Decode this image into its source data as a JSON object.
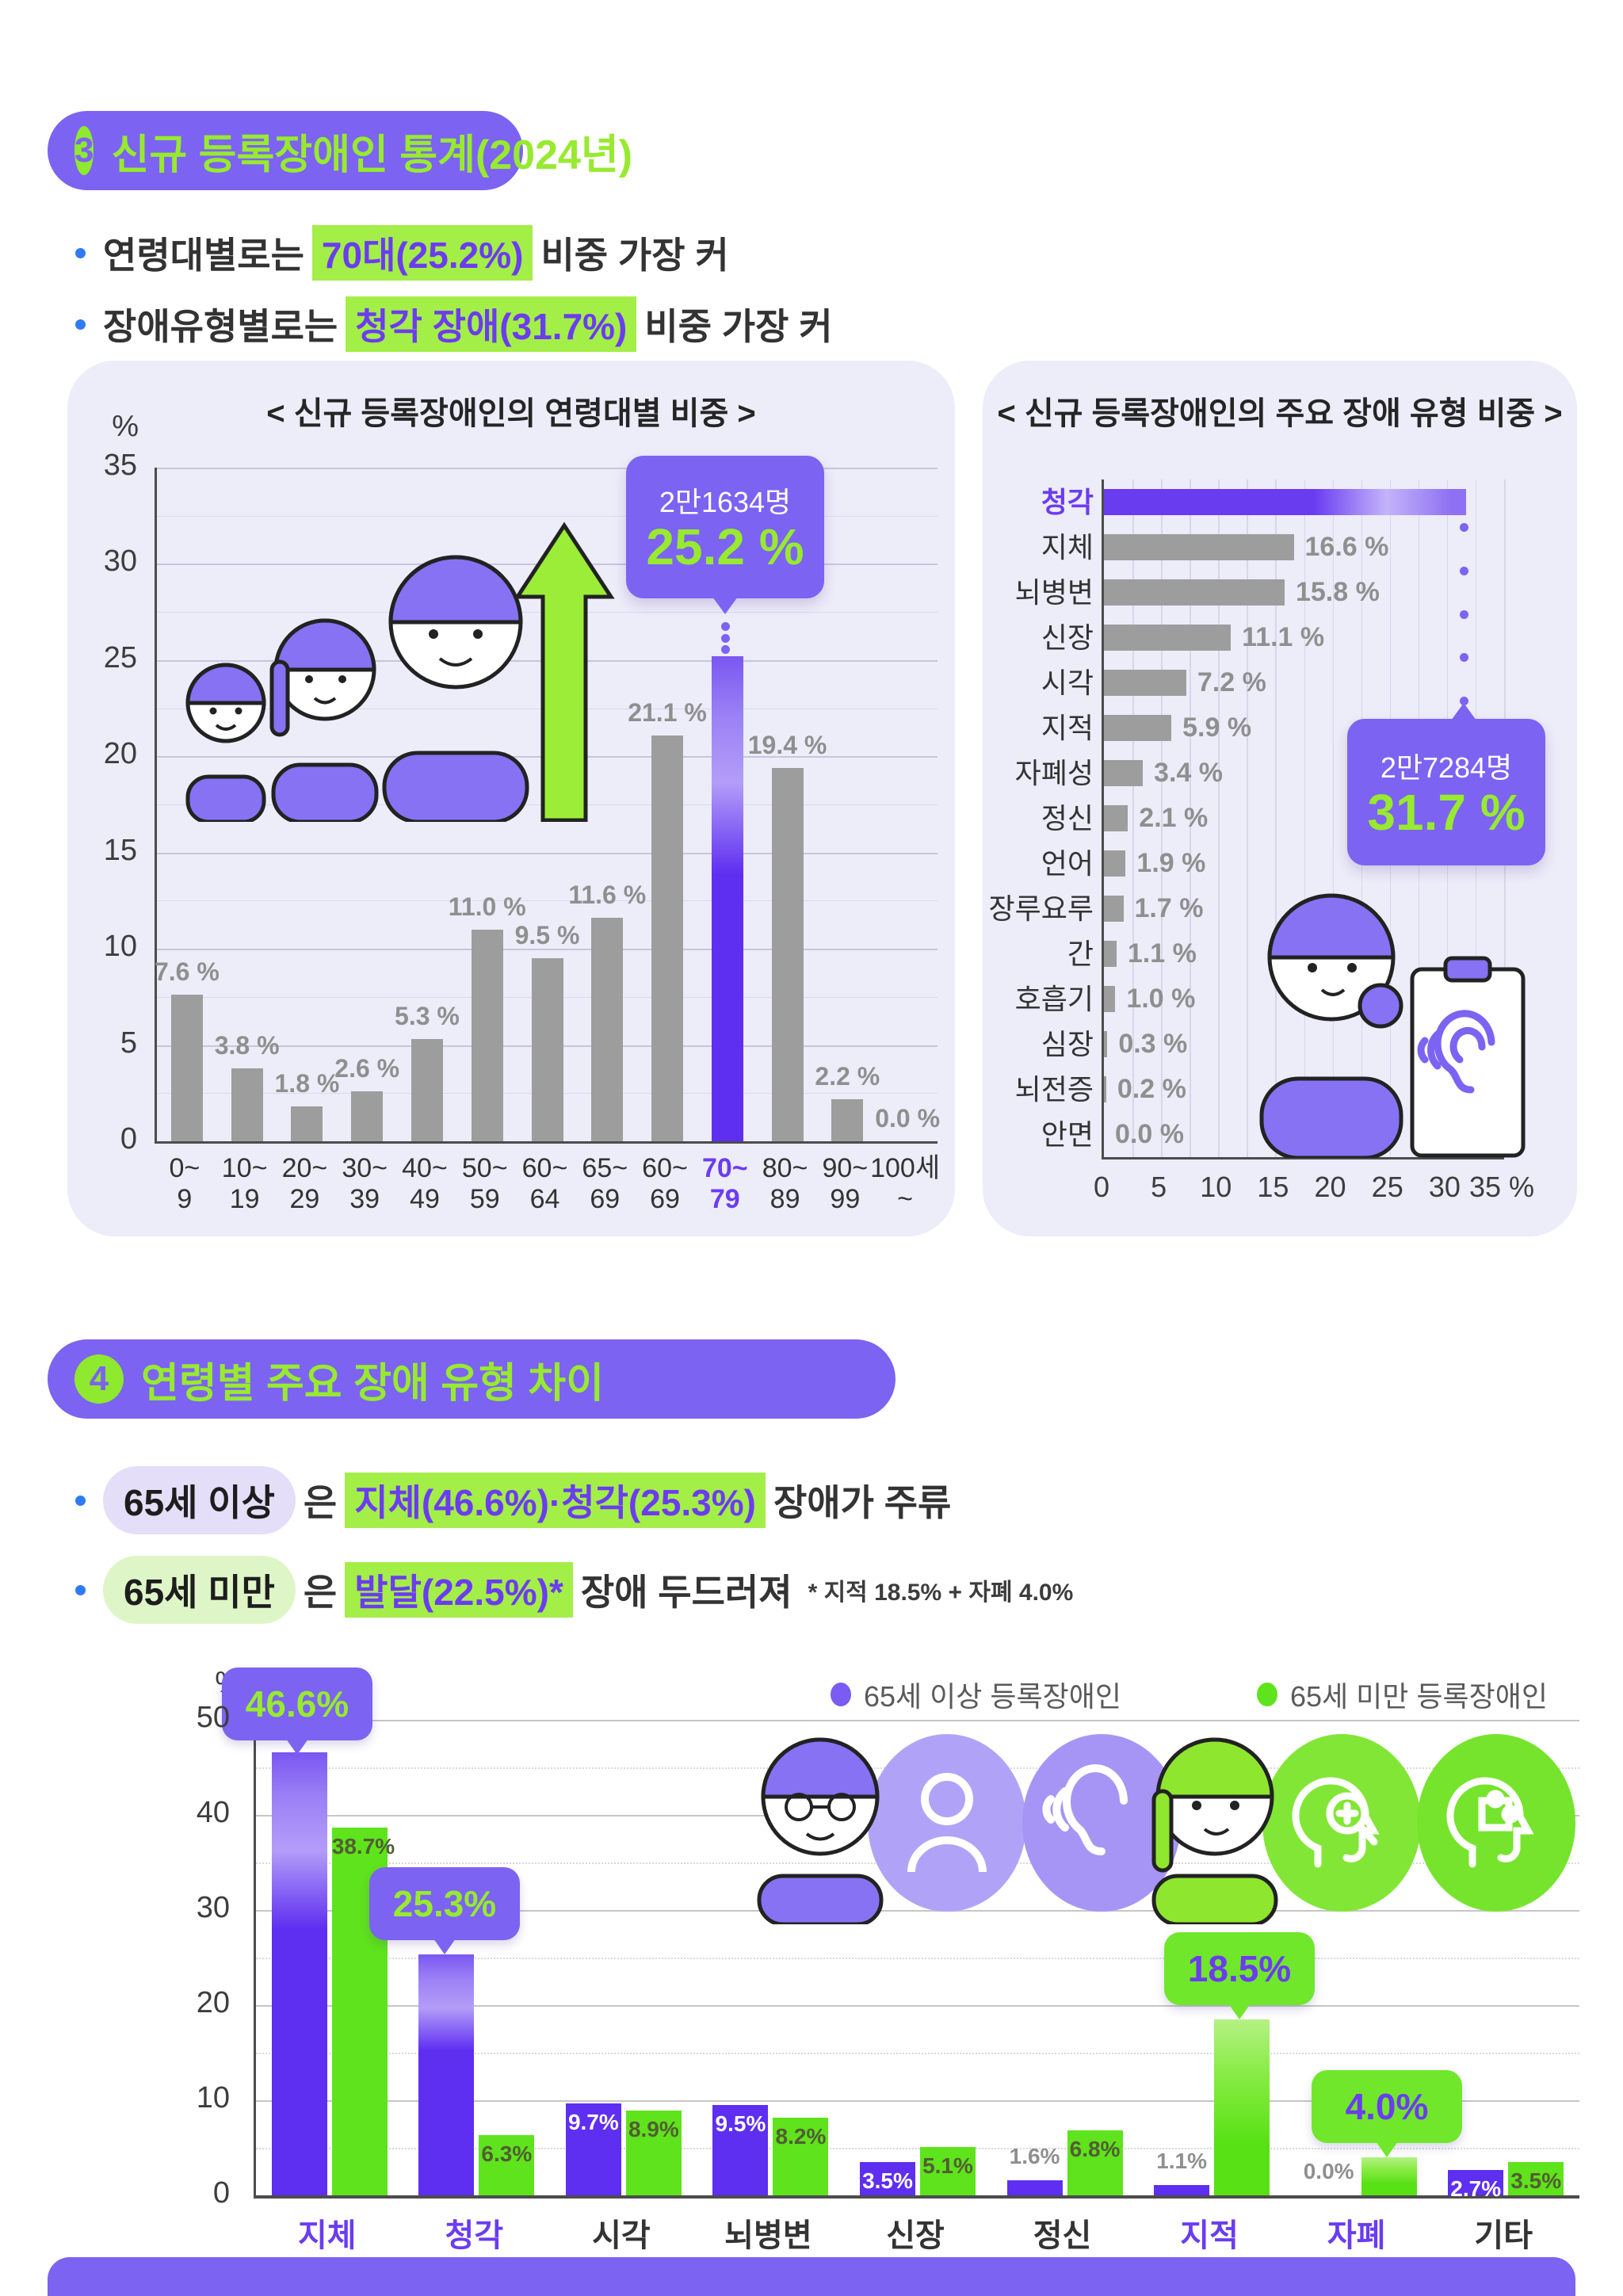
{
  "section3": {
    "badge_number": "3",
    "badge_title": "신규 등록장애인 통계(2024년)",
    "bullets": [
      {
        "prefix": "연령대별로는",
        "highlight": "70대(25.2%)",
        "suffix": "비중 가장 커"
      },
      {
        "prefix": "장애유형별로는",
        "highlight": "청각 장애(31.7%)",
        "suffix": "비중 가장 커"
      }
    ]
  },
  "section4": {
    "badge_number": "4",
    "badge_title": "연령별 주요 장애 유형 차이",
    "bullets": [
      {
        "pill": "65세 이상",
        "join": "은",
        "highlight": "지체(46.6%)·청각(25.3%)",
        "suffix": "장애가 주류",
        "note": ""
      },
      {
        "pill": "65세 미만",
        "join": "은",
        "highlight": "발달(22.5%)*",
        "suffix": "장애 두드러져",
        "note": "* 지적 18.5% + 자폐 4.0%"
      }
    ]
  },
  "chart_data": [
    {
      "id": "age",
      "type": "bar",
      "title": "< 신규 등록장애인의 연령대별 비중 >",
      "unit": "%",
      "ylim": [
        0,
        35
      ],
      "yticks": [
        35,
        30,
        25,
        20,
        15,
        10,
        5,
        0
      ],
      "grid": "horizontal, major every 5, minor every 2.5",
      "categories": [
        [
          "0~",
          "9"
        ],
        [
          "10~",
          "19"
        ],
        [
          "20~",
          "29"
        ],
        [
          "30~",
          "39"
        ],
        [
          "40~",
          "49"
        ],
        [
          "50~",
          "59"
        ],
        [
          "60~",
          "64"
        ],
        [
          "65~",
          "69"
        ],
        [
          "60~",
          "69"
        ],
        [
          "70~",
          "79"
        ],
        [
          "80~",
          "89"
        ],
        [
          "90~",
          "99"
        ],
        [
          "100세~"
        ]
      ],
      "values": [
        7.6,
        3.8,
        1.8,
        2.6,
        5.3,
        11.0,
        9.5,
        11.6,
        21.1,
        25.2,
        19.4,
        2.2,
        0.0
      ],
      "highlight_index": 9,
      "callout": {
        "line1": "2만1634명",
        "line2": "25.2 %"
      }
    },
    {
      "id": "type",
      "type": "bar-horizontal",
      "title": "< 신규 등록장애인의 주요 장애 유형 비중 >",
      "xlim": [
        0,
        35
      ],
      "xticks": [
        0,
        5,
        10,
        15,
        20,
        25,
        30,
        35
      ],
      "xunit": "%",
      "categories": [
        "청각",
        "지체",
        "뇌병변",
        "신장",
        "시각",
        "지적",
        "자폐성",
        "정신",
        "언어",
        "장루요루",
        "간",
        "호흡기",
        "심장",
        "뇌전증",
        "안면"
      ],
      "values": [
        31.7,
        16.6,
        15.8,
        11.1,
        7.2,
        5.9,
        3.4,
        2.1,
        1.9,
        1.7,
        1.1,
        1.0,
        0.3,
        0.2,
        0.0
      ],
      "highlight_index": 0,
      "callout": {
        "line1": "2만7284명",
        "line2": "31.7 %"
      }
    },
    {
      "id": "agediff",
      "type": "grouped-bar",
      "unit": "%",
      "ylim": [
        0,
        50
      ],
      "yticks": [
        50,
        40,
        30,
        20,
        10,
        0
      ],
      "grid": "solid every 10, dotted every 5",
      "categories": [
        "지체",
        "청각",
        "시각",
        "뇌병변",
        "신장",
        "정신",
        "지적",
        "자폐",
        "기타"
      ],
      "series": [
        {
          "name": "65세 이상 등록장애인",
          "color": "#5e2ef1",
          "values": [
            46.6,
            25.3,
            9.7,
            9.5,
            3.5,
            1.6,
            1.1,
            0.0,
            2.7
          ]
        },
        {
          "name": "65세 미만 등록장애인",
          "color": "#5fe31c",
          "values": [
            38.7,
            6.3,
            8.9,
            8.2,
            5.1,
            6.8,
            18.5,
            4.0,
            3.5
          ]
        }
      ],
      "highlight_indices": [
        0,
        1,
        6,
        7
      ],
      "callouts": [
        {
          "series": 0,
          "index": 0,
          "text": "46.6%",
          "style": "purple"
        },
        {
          "series": 0,
          "index": 1,
          "text": "25.3%",
          "style": "purple"
        },
        {
          "series": 1,
          "index": 6,
          "text": "18.5%",
          "style": "green"
        },
        {
          "series": 1,
          "index": 7,
          "text": "4.0%",
          "style": "green"
        }
      ]
    }
  ],
  "colors": {
    "purple": "#7c63f2",
    "purple_bar": "#5e2ef1",
    "lime": "#97ea2f",
    "lime_highlight": "#a4ee48",
    "green_bar": "#5fe31c",
    "panel_bg": "#edecf9",
    "gray_bar": "#9d9d9d",
    "value_gray": "#8f8f8f",
    "bullet_blue": "#2f7bf6"
  }
}
